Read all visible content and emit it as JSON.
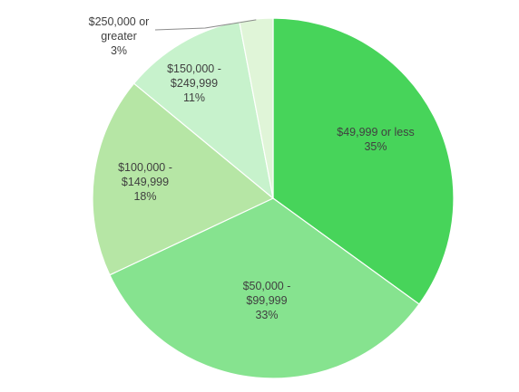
{
  "chart_data": {
    "type": "pie",
    "title": "",
    "categories": [
      "$49,999 or less",
      "$50,000 - $99,999",
      "$100,000 - $149,999",
      "$150,000 - $249,999",
      "$250,000 or greater"
    ],
    "values": [
      35,
      33,
      18,
      11,
      3
    ],
    "unit": "%",
    "colors": [
      "#47d45a",
      "#86e38f",
      "#b6e6a5",
      "#c7f2cc",
      "#e0f5d8"
    ],
    "legend": "none",
    "start_angle": "12 o'clock, clockwise",
    "data_labels": [
      {
        "lines": [
          "$49,999 or less",
          "35%"
        ]
      },
      {
        "lines": [
          "$50,000 -",
          "$99,999",
          "33%"
        ]
      },
      {
        "lines": [
          "$100,000 -",
          "$149,999",
          "18%"
        ]
      },
      {
        "lines": [
          "$150,000 -",
          "$249,999",
          "11%"
        ]
      },
      {
        "lines": [
          "$250,000 or",
          "greater",
          "3%"
        ]
      }
    ]
  }
}
